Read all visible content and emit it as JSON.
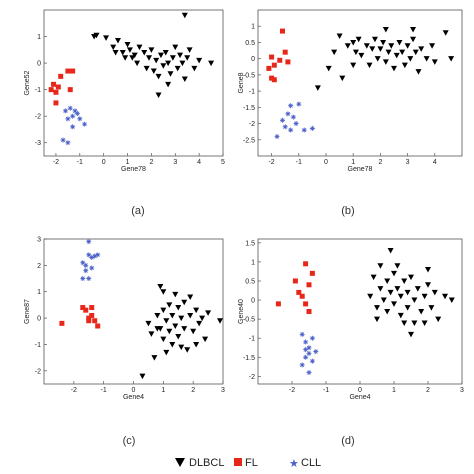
{
  "chart_data": [
    {
      "type": "scatter",
      "caption": "(a)",
      "xlabel": "Gene78",
      "ylabel": "Gene52",
      "xlim": [
        -2.5,
        5
      ],
      "ylim": [
        -3.5,
        2
      ],
      "xticks": [
        -2,
        -1,
        0,
        1,
        2,
        3,
        4,
        5
      ],
      "yticks": [
        -3,
        -2,
        -1,
        0,
        1
      ],
      "series": [
        {
          "name": "DLBCL",
          "points": [
            [
              -0.4,
              1.0
            ],
            [
              -0.3,
              1.05
            ],
            [
              0.1,
              0.95
            ],
            [
              0.4,
              0.6
            ],
            [
              0.6,
              0.85
            ],
            [
              0.8,
              0.4
            ],
            [
              0.9,
              0.2
            ],
            [
              1.0,
              0.7
            ],
            [
              1.1,
              0.5
            ],
            [
              1.3,
              0.3
            ],
            [
              1.4,
              0.0
            ],
            [
              1.5,
              0.6
            ],
            [
              1.7,
              0.4
            ],
            [
              1.8,
              -0.2
            ],
            [
              1.9,
              0.2
            ],
            [
              2.0,
              0.5
            ],
            [
              2.1,
              -0.3
            ],
            [
              2.2,
              0.1
            ],
            [
              2.3,
              -0.5
            ],
            [
              2.4,
              0.3
            ],
            [
              2.5,
              -0.1
            ],
            [
              2.6,
              0.4
            ],
            [
              2.7,
              0.0
            ],
            [
              2.8,
              -0.4
            ],
            [
              2.9,
              0.2
            ],
            [
              3.0,
              0.6
            ],
            [
              3.1,
              -0.2
            ],
            [
              3.2,
              0.3
            ],
            [
              3.3,
              0.0
            ],
            [
              3.4,
              -0.6
            ],
            [
              3.5,
              0.2
            ],
            [
              3.6,
              0.5
            ],
            [
              3.8,
              -0.2
            ],
            [
              4.0,
              0.1
            ],
            [
              4.5,
              0.0
            ],
            [
              2.3,
              -1.2
            ],
            [
              3.4,
              1.8
            ],
            [
              1.2,
              0.2
            ],
            [
              0.5,
              0.4
            ],
            [
              2.7,
              -0.8
            ]
          ]
        },
        {
          "name": "FL",
          "points": [
            [
              -2.1,
              -0.8
            ],
            [
              -2.2,
              -1.0
            ],
            [
              -2.0,
              -1.5
            ],
            [
              -1.9,
              -0.9
            ],
            [
              -1.8,
              -0.5
            ],
            [
              -1.5,
              -0.3
            ],
            [
              -1.3,
              -0.3
            ],
            [
              -1.4,
              -1.0
            ],
            [
              -2.0,
              -1.1
            ]
          ]
        },
        {
          "name": "CLL",
          "points": [
            [
              -1.6,
              -1.8
            ],
            [
              -1.4,
              -1.7
            ],
            [
              -1.2,
              -1.8
            ],
            [
              -1.0,
              -2.1
            ],
            [
              -1.5,
              -2.1
            ],
            [
              -1.3,
              -2.4
            ],
            [
              -1.7,
              -2.9
            ],
            [
              -1.5,
              -3.0
            ],
            [
              -0.8,
              -2.3
            ],
            [
              -1.3,
              -2.0
            ],
            [
              -1.1,
              -1.9
            ]
          ]
        }
      ]
    },
    {
      "type": "scatter",
      "caption": "(b)",
      "xlabel": "Gene78",
      "ylabel": "Gene8",
      "xlim": [
        -2.5,
        5
      ],
      "ylim": [
        -3,
        1.5
      ],
      "xticks": [
        -2,
        -1,
        0,
        1,
        2,
        3,
        4
      ],
      "yticks": [
        -2.5,
        -2,
        -1.5,
        -1,
        -0.5,
        0,
        0.5,
        1
      ],
      "series": [
        {
          "name": "DLBCL",
          "points": [
            [
              -0.3,
              -0.9
            ],
            [
              0.1,
              -0.3
            ],
            [
              0.3,
              0.2
            ],
            [
              0.5,
              0.7
            ],
            [
              0.8,
              0.4
            ],
            [
              1.0,
              0.5
            ],
            [
              1.1,
              0.2
            ],
            [
              1.2,
              0.6
            ],
            [
              1.3,
              0.1
            ],
            [
              1.5,
              0.4
            ],
            [
              1.6,
              -0.2
            ],
            [
              1.7,
              0.3
            ],
            [
              1.8,
              0.6
            ],
            [
              1.9,
              0.0
            ],
            [
              2.0,
              0.3
            ],
            [
              2.1,
              0.5
            ],
            [
              2.2,
              -0.1
            ],
            [
              2.3,
              0.2
            ],
            [
              2.4,
              0.4
            ],
            [
              2.5,
              -0.3
            ],
            [
              2.6,
              0.1
            ],
            [
              2.7,
              0.5
            ],
            [
              2.8,
              0.2
            ],
            [
              2.9,
              -0.2
            ],
            [
              3.0,
              0.4
            ],
            [
              3.1,
              0.0
            ],
            [
              3.2,
              0.6
            ],
            [
              3.3,
              0.2
            ],
            [
              3.4,
              -0.4
            ],
            [
              3.5,
              0.3
            ],
            [
              3.7,
              0.0
            ],
            [
              3.9,
              0.4
            ],
            [
              4.0,
              -0.1
            ],
            [
              4.4,
              0.8
            ],
            [
              4.6,
              0.0
            ],
            [
              0.6,
              -0.6
            ],
            [
              3.2,
              0.9
            ],
            [
              1.0,
              -0.2
            ],
            [
              2.2,
              0.9
            ]
          ]
        },
        {
          "name": "FL",
          "points": [
            [
              -2.1,
              -0.3
            ],
            [
              -2.0,
              -0.6
            ],
            [
              -1.9,
              -0.65
            ],
            [
              -1.7,
              -0.05
            ],
            [
              -1.5,
              0.2
            ],
            [
              -1.4,
              -0.1
            ],
            [
              -1.6,
              0.85
            ],
            [
              -1.9,
              -0.2
            ],
            [
              -2.0,
              0.05
            ]
          ]
        },
        {
          "name": "CLL",
          "points": [
            [
              -1.6,
              -1.9
            ],
            [
              -1.4,
              -1.7
            ],
            [
              -1.2,
              -1.8
            ],
            [
              -1.1,
              -2.0
            ],
            [
              -1.5,
              -2.1
            ],
            [
              -1.3,
              -2.2
            ],
            [
              -1.8,
              -2.4
            ],
            [
              -0.8,
              -2.2
            ],
            [
              -0.5,
              -2.15
            ],
            [
              -1.0,
              -1.4
            ],
            [
              -1.3,
              -1.45
            ]
          ]
        }
      ]
    },
    {
      "type": "scatter",
      "caption": "(c)",
      "xlabel": "Gene4",
      "ylabel": "Gene87",
      "xlim": [
        -3,
        3
      ],
      "ylim": [
        -2.5,
        3
      ],
      "xticks": [
        -2,
        -1,
        0,
        1,
        2,
        3
      ],
      "yticks": [
        -2,
        -1,
        0,
        1,
        2,
        3
      ],
      "series": [
        {
          "name": "DLBCL",
          "points": [
            [
              0.3,
              -2.2
            ],
            [
              0.5,
              -0.2
            ],
            [
              0.6,
              -0.6
            ],
            [
              0.7,
              -1.5
            ],
            [
              0.8,
              0.1
            ],
            [
              0.9,
              -0.4
            ],
            [
              1.0,
              -0.8
            ],
            [
              1.0,
              0.3
            ],
            [
              1.1,
              -0.1
            ],
            [
              1.2,
              -0.5
            ],
            [
              1.2,
              0.5
            ],
            [
              1.3,
              -1.0
            ],
            [
              1.3,
              0.1
            ],
            [
              1.4,
              -0.3
            ],
            [
              1.5,
              0.4
            ],
            [
              1.5,
              -0.7
            ],
            [
              1.6,
              0.0
            ],
            [
              1.7,
              -0.4
            ],
            [
              1.7,
              0.6
            ],
            [
              1.8,
              -1.2
            ],
            [
              1.9,
              0.1
            ],
            [
              2.0,
              -0.5
            ],
            [
              2.1,
              0.3
            ],
            [
              2.2,
              -0.2
            ],
            [
              2.3,
              0.0
            ],
            [
              2.4,
              -0.8
            ],
            [
              2.5,
              0.2
            ],
            [
              2.9,
              -0.1
            ],
            [
              1.0,
              1.0
            ],
            [
              1.4,
              0.9
            ],
            [
              1.9,
              0.8
            ],
            [
              2.1,
              -1.0
            ],
            [
              1.1,
              -1.3
            ],
            [
              0.9,
              1.2
            ],
            [
              0.8,
              -0.4
            ],
            [
              1.6,
              -1.1
            ]
          ]
        },
        {
          "name": "FL",
          "points": [
            [
              -2.4,
              -0.2
            ],
            [
              -1.7,
              0.4
            ],
            [
              -1.6,
              0.3
            ],
            [
              -1.5,
              0.0
            ],
            [
              -1.4,
              0.1
            ],
            [
              -1.3,
              -0.1
            ],
            [
              -1.2,
              -0.3
            ],
            [
              -1.4,
              0.4
            ],
            [
              -1.5,
              -0.1
            ]
          ]
        },
        {
          "name": "CLL",
          "points": [
            [
              -1.7,
              2.1
            ],
            [
              -1.5,
              2.4
            ],
            [
              -1.4,
              2.3
            ],
            [
              -1.3,
              2.35
            ],
            [
              -1.6,
              1.8
            ],
            [
              -1.5,
              1.5
            ],
            [
              -1.4,
              1.9
            ],
            [
              -1.7,
              1.5
            ],
            [
              -1.5,
              2.9
            ],
            [
              -1.6,
              2.0
            ],
            [
              -1.2,
              2.4
            ]
          ]
        }
      ]
    },
    {
      "type": "scatter",
      "caption": "(d)",
      "xlabel": "Gene4",
      "ylabel": "Gene40",
      "xlim": [
        -3,
        3
      ],
      "ylim": [
        -2.2,
        1.6
      ],
      "xticks": [
        -2,
        -1,
        0,
        1,
        2,
        3
      ],
      "yticks": [
        -2,
        -1.5,
        -1,
        -0.5,
        0,
        0.5,
        1,
        1.5
      ],
      "series": [
        {
          "name": "DLBCL",
          "points": [
            [
              0.3,
              0.1
            ],
            [
              0.4,
              0.6
            ],
            [
              0.5,
              -0.2
            ],
            [
              0.6,
              0.3
            ],
            [
              0.7,
              0.0
            ],
            [
              0.8,
              -0.3
            ],
            [
              0.8,
              0.5
            ],
            [
              0.9,
              0.2
            ],
            [
              1.0,
              -0.1
            ],
            [
              1.0,
              0.7
            ],
            [
              1.1,
              0.3
            ],
            [
              1.2,
              -0.4
            ],
            [
              1.2,
              0.1
            ],
            [
              1.3,
              0.5
            ],
            [
              1.4,
              -0.2
            ],
            [
              1.4,
              0.2
            ],
            [
              1.5,
              0.6
            ],
            [
              1.6,
              0.0
            ],
            [
              1.6,
              -0.6
            ],
            [
              1.7,
              0.3
            ],
            [
              1.8,
              -0.3
            ],
            [
              1.9,
              0.1
            ],
            [
              2.0,
              0.4
            ],
            [
              2.1,
              -0.2
            ],
            [
              2.2,
              0.2
            ],
            [
              2.3,
              -0.5
            ],
            [
              2.5,
              0.1
            ],
            [
              2.7,
              0.0
            ],
            [
              0.9,
              1.3
            ],
            [
              1.1,
              0.9
            ],
            [
              1.5,
              -0.9
            ],
            [
              1.9,
              -0.6
            ],
            [
              2.0,
              0.8
            ],
            [
              0.6,
              0.9
            ],
            [
              0.5,
              -0.5
            ],
            [
              1.3,
              -0.6
            ]
          ]
        },
        {
          "name": "FL",
          "points": [
            [
              -2.4,
              -0.1
            ],
            [
              -1.9,
              0.5
            ],
            [
              -1.7,
              0.1
            ],
            [
              -1.6,
              -0.1
            ],
            [
              -1.5,
              0.4
            ],
            [
              -1.4,
              0.7
            ],
            [
              -1.5,
              -0.3
            ],
            [
              -1.6,
              0.95
            ],
            [
              -1.8,
              0.2
            ]
          ]
        },
        {
          "name": "CLL",
          "points": [
            [
              -1.7,
              -0.9
            ],
            [
              -1.6,
              -1.1
            ],
            [
              -1.5,
              -1.25
            ],
            [
              -1.4,
              -1.0
            ],
            [
              -1.5,
              -1.4
            ],
            [
              -1.6,
              -1.5
            ],
            [
              -1.7,
              -1.7
            ],
            [
              -1.4,
              -1.6
            ],
            [
              -1.5,
              -1.9
            ],
            [
              -1.3,
              -1.35
            ],
            [
              -1.6,
              -1.3
            ]
          ]
        }
      ]
    }
  ],
  "legend": [
    {
      "name": "DLBCL",
      "marker": "triangle",
      "color": "#000000"
    },
    {
      "name": "FL",
      "marker": "square",
      "color": "#e8271b"
    },
    {
      "name": "CLL",
      "marker": "star",
      "color": "#4a5fc8"
    }
  ]
}
